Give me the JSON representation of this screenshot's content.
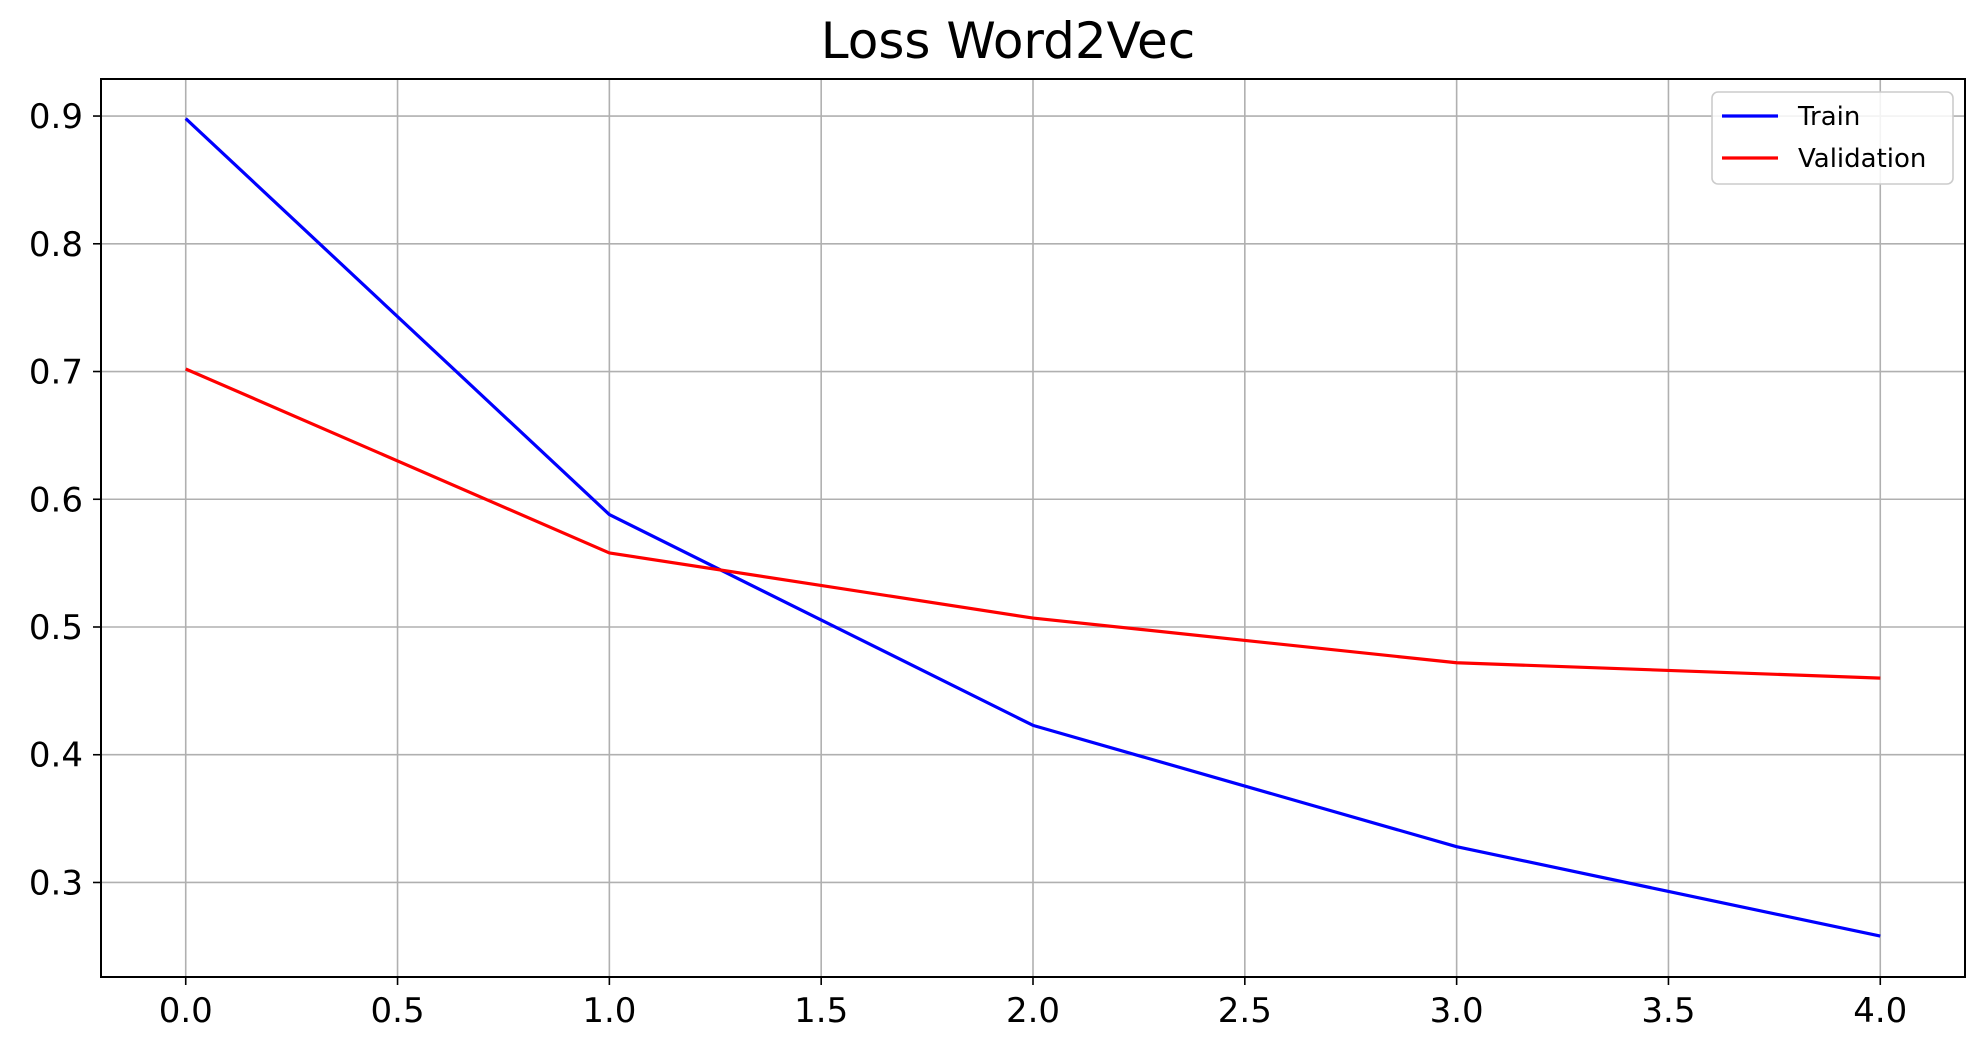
{
  "chart_data": {
    "type": "line",
    "title": "Loss Word2Vec",
    "xlabel": "",
    "ylabel": "",
    "x": [
      0,
      1,
      2,
      3,
      4
    ],
    "xlim": [
      -0.2,
      4.2
    ],
    "ylim": [
      0.226,
      0.929
    ],
    "xticks": [
      "0.0",
      "0.5",
      "1.0",
      "1.5",
      "2.0",
      "2.5",
      "3.0",
      "3.5",
      "4.0"
    ],
    "yticks": [
      "0.3",
      "0.4",
      "0.5",
      "0.6",
      "0.7",
      "0.8",
      "0.9"
    ],
    "grid": true,
    "legend_position": "top-right",
    "series": [
      {
        "name": "Train",
        "color": "#0000ff",
        "values": [
          0.898,
          0.588,
          0.423,
          0.328,
          0.258
        ]
      },
      {
        "name": "Validation",
        "color": "#ff0000",
        "values": [
          0.702,
          0.558,
          0.507,
          0.472,
          0.46
        ]
      }
    ]
  }
}
